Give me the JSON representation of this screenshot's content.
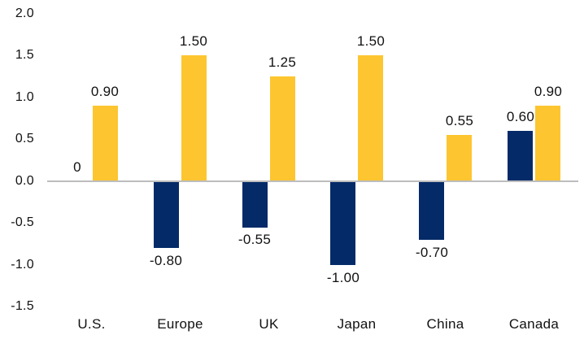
{
  "chart_data": {
    "type": "bar",
    "title": "",
    "categories": [
      "U.S.",
      "Europe",
      "UK",
      "Japan",
      "China",
      "Canada"
    ],
    "series": [
      {
        "name": "navy-series",
        "color": "#042A68",
        "values": [
          0,
          -0.8,
          -0.55,
          -1.0,
          -0.7,
          0.6
        ],
        "labels": [
          "0",
          "-0.80",
          "-0.55",
          "-1.00",
          "-0.70",
          "0.60"
        ]
      },
      {
        "name": "gold-series",
        "color": "#FDC52F",
        "values": [
          0.9,
          1.5,
          1.25,
          1.5,
          0.55,
          0.9
        ],
        "labels": [
          "0.90",
          "1.50",
          "1.25",
          "1.50",
          "0.55",
          "0.90"
        ]
      }
    ],
    "ylim": [
      -1.5,
      2.0
    ],
    "yticks": [
      2.0,
      1.5,
      1.0,
      0.5,
      0.0,
      -0.5,
      -1.0,
      -1.5
    ],
    "ytick_labels": [
      "2.0",
      "1.5",
      "1.0",
      "0.5",
      "0.0",
      "-0.5",
      "-1.0",
      "-1.5"
    ],
    "grid": false,
    "legend": "none",
    "data_labels": true,
    "axis_line_color": "#BDBDBD",
    "text_color": "#111111",
    "background_color": "#FFFFFF"
  }
}
